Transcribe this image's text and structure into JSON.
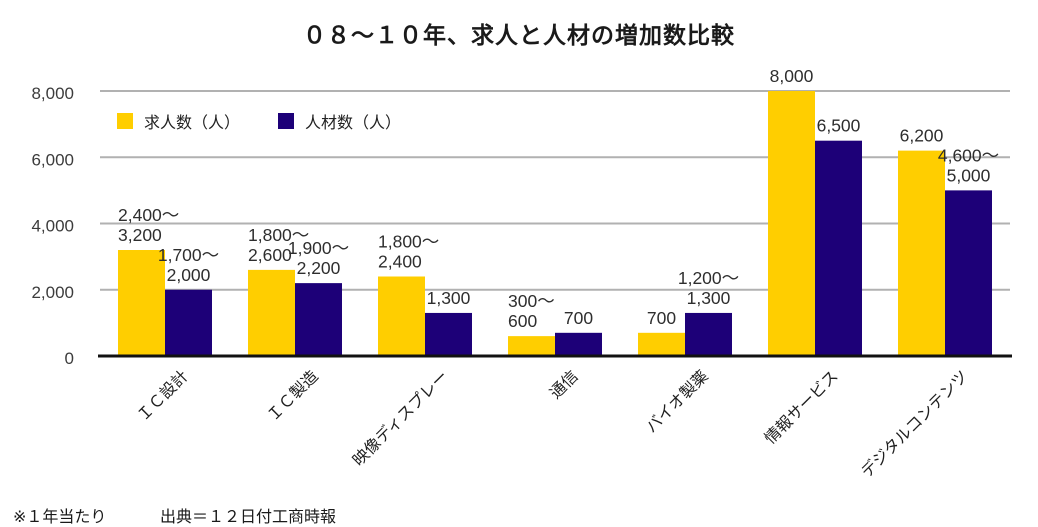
{
  "title": "０８～１０年、求人と人材の増加数比較",
  "legend": [
    {
      "label": "求人数（人）",
      "color": "#FFCE00"
    },
    {
      "label": "人材数（人）",
      "color": "#1D0078"
    }
  ],
  "footnote": {
    "note": "※１年当たり",
    "source": "出典＝１２日付工商時報"
  },
  "chart_data": {
    "type": "bar",
    "title": "０８～１０年、求人と人材の増加数比較",
    "categories": [
      "ＩＣ設計",
      "ＩＣ製造",
      "映像ディスプレー",
      "通信",
      "バイオ製薬",
      "情報サービス",
      "デジタルコンテンツ"
    ],
    "series": [
      {
        "key": "jobs",
        "name": "求人数（人）",
        "color": "#FFCE00",
        "values": [
          3200,
          2600,
          2400,
          600,
          700,
          8000,
          6200
        ],
        "labels": [
          [
            "2,400～",
            "3,200"
          ],
          [
            "1,800～",
            "2,600"
          ],
          [
            "1,800～",
            "2,400"
          ],
          [
            "300～",
            "600"
          ],
          [
            "700"
          ],
          [
            "8,000"
          ],
          [
            "6,200"
          ]
        ]
      },
      {
        "key": "talent",
        "name": "人材数（人）",
        "color": "#1D0078",
        "values": [
          2000,
          2200,
          1300,
          700,
          1300,
          6500,
          5000
        ],
        "labels": [
          [
            "1,700～",
            "2,000"
          ],
          [
            "1,900～",
            "2,200"
          ],
          [
            "1,300"
          ],
          [
            "700"
          ],
          [
            "1,200～",
            "1,300"
          ],
          [
            "6,500"
          ],
          [
            "4,600～",
            "5,000"
          ]
        ]
      }
    ],
    "xlabel": "",
    "ylabel": "",
    "ylim": [
      0,
      8000
    ],
    "yticks": [
      {
        "value": 0,
        "label": "0"
      },
      {
        "value": 2000,
        "label": "2,000"
      },
      {
        "value": 4000,
        "label": "4,000"
      },
      {
        "value": 6000,
        "label": "6,000"
      },
      {
        "value": 8000,
        "label": "8,000"
      }
    ],
    "grid": true,
    "legend_position": "top-left-inside",
    "colors": {
      "grid": "#b1b1b1",
      "axis": "#111111",
      "tick_text": "#3c3c3c",
      "label_text": "#2e2e2e"
    }
  }
}
